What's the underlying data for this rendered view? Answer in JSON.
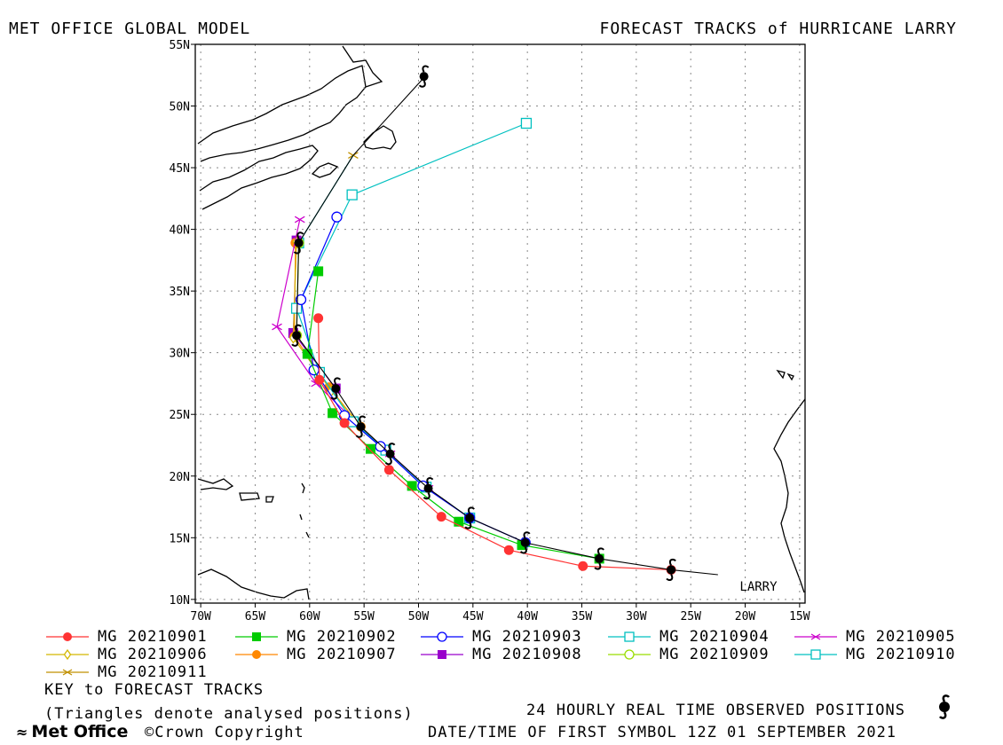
{
  "header": {
    "left_title": "MET OFFICE GLOBAL MODEL",
    "right_title": "FORECAST TRACKS of HURRICANE LARRY"
  },
  "chart_data": {
    "type": "scatter",
    "title": "FORECAST TRACKS of HURRICANE LARRY",
    "xlim": [
      -70.5,
      -14.5
    ],
    "ylim": [
      9.7,
      55
    ],
    "x_ticks": [
      -70,
      -65,
      -60,
      -55,
      -50,
      -45,
      -40,
      -35,
      -30,
      -25,
      -20,
      -15
    ],
    "x_tick_labels": [
      "70W",
      "65W",
      "60W",
      "55W",
      "50W",
      "45W",
      "40W",
      "35W",
      "30W",
      "25W",
      "20W",
      "15W"
    ],
    "y_ticks": [
      10,
      15,
      20,
      25,
      30,
      35,
      40,
      45,
      50,
      55
    ],
    "y_tick_labels": [
      "10N",
      "15N",
      "20N",
      "25N",
      "30N",
      "35N",
      "40N",
      "45N",
      "50N",
      "55N"
    ],
    "grid": true,
    "storm_label": "LARRY",
    "storm_label_pos": [
      -20.5,
      10.7
    ],
    "observed": {
      "name": "24 HOURLY REAL TIME OBSERVED POSITIONS",
      "line": [
        [
          -22.5,
          12.0
        ],
        [
          -26.8,
          12.4
        ],
        [
          -33.4,
          13.3
        ],
        [
          -40.2,
          14.6
        ],
        [
          -45.3,
          16.6
        ],
        [
          -49.1,
          19.0
        ],
        [
          -52.6,
          21.8
        ],
        [
          -55.3,
          24.0
        ],
        [
          -57.6,
          27.1
        ],
        [
          -61.2,
          31.4
        ],
        [
          -61.0,
          38.9
        ],
        [
          -56.0,
          46.0
        ],
        [
          -49.5,
          52.3
        ],
        [
          -49.5,
          52.4
        ]
      ],
      "symbols": [
        [
          -26.8,
          12.4
        ],
        [
          -33.4,
          13.3
        ],
        [
          -40.2,
          14.6
        ],
        [
          -45.3,
          16.6
        ],
        [
          -49.1,
          19.0
        ],
        [
          -52.6,
          21.8
        ],
        [
          -55.3,
          24.0
        ],
        [
          -57.6,
          27.1
        ],
        [
          -61.2,
          31.4
        ],
        [
          -61.0,
          38.9
        ],
        [
          -49.5,
          52.4
        ]
      ]
    },
    "series": [
      {
        "name": "MG 20210901",
        "color": "#ff3333",
        "marker": "circle-filled",
        "points": [
          [
            -26.8,
            12.4
          ],
          [
            -34.9,
            12.7
          ],
          [
            -41.7,
            14.0
          ],
          [
            -47.9,
            16.7
          ],
          [
            -52.7,
            20.5
          ],
          [
            -56.8,
            24.3
          ],
          [
            -59.1,
            27.8
          ],
          [
            -59.2,
            32.8
          ]
        ]
      },
      {
        "name": "MG 20210902",
        "color": "#00cc00",
        "marker": "square-filled",
        "points": [
          [
            -33.4,
            13.3
          ],
          [
            -40.5,
            14.4
          ],
          [
            -46.3,
            16.3
          ],
          [
            -50.6,
            19.2
          ],
          [
            -54.4,
            22.2
          ],
          [
            -57.9,
            25.1
          ],
          [
            -60.2,
            29.9
          ],
          [
            -59.2,
            36.6
          ]
        ]
      },
      {
        "name": "MG 20210903",
        "color": "#0000ff",
        "marker": "circle-open",
        "points": [
          [
            -40.2,
            14.6
          ],
          [
            -45.3,
            16.6
          ],
          [
            -49.6,
            19.2
          ],
          [
            -53.5,
            22.4
          ],
          [
            -56.8,
            24.9
          ],
          [
            -59.6,
            28.6
          ],
          [
            -60.8,
            34.3
          ],
          [
            -57.5,
            41.0
          ]
        ]
      },
      {
        "name": "MG 20210904",
        "color": "#00c0c0",
        "marker": "square-open",
        "points": [
          [
            -45.3,
            16.6
          ],
          [
            -49.3,
            19.1
          ],
          [
            -53.0,
            22.1
          ],
          [
            -56.0,
            24.4
          ],
          [
            -59.1,
            28.4
          ],
          [
            -61.2,
            33.6
          ],
          [
            -56.1,
            42.8
          ],
          [
            -40.1,
            48.6
          ]
        ]
      },
      {
        "name": "MG 20210905",
        "color": "#cc00cc",
        "marker": "x",
        "points": [
          [
            -49.1,
            19.0
          ],
          [
            -52.6,
            21.8
          ],
          [
            -55.8,
            24.4
          ],
          [
            -59.4,
            27.5
          ],
          [
            -63.0,
            32.1
          ],
          [
            -60.9,
            40.8
          ]
        ]
      },
      {
        "name": "MG 20210906",
        "color": "#d4b800",
        "marker": "diamond",
        "points": [
          [
            -52.6,
            21.8
          ],
          [
            -55.4,
            24.1
          ],
          [
            -58.0,
            26.9
          ],
          [
            -61.5,
            31.2
          ],
          [
            -61.2,
            39.0
          ]
        ]
      },
      {
        "name": "MG 20210907",
        "color": "#ff8800",
        "marker": "circle-filled",
        "points": [
          [
            -55.3,
            24.0
          ],
          [
            -58.2,
            27.2
          ],
          [
            -61.4,
            31.3
          ],
          [
            -61.3,
            38.9
          ]
        ]
      },
      {
        "name": "MG 20210908",
        "color": "#9900cc",
        "marker": "square-filled",
        "points": [
          [
            -57.6,
            27.1
          ],
          [
            -61.5,
            31.6
          ],
          [
            -61.2,
            39.1
          ]
        ]
      },
      {
        "name": "MG 20210909",
        "color": "#99dd00",
        "marker": "circle-open",
        "points": [
          [
            -61.2,
            31.4
          ],
          [
            -61.0,
            38.9
          ]
        ]
      },
      {
        "name": "MG 20210910",
        "color": "#00c0c0",
        "marker": "square-open",
        "points": [
          [
            -61.0,
            38.9
          ]
        ]
      },
      {
        "name": "MG 20210911",
        "color": "#c09000",
        "marker": "x",
        "points": [
          [
            -56.0,
            46.0
          ]
        ]
      }
    ]
  },
  "legend": {
    "items": [
      {
        "label": "MG 20210901"
      },
      {
        "label": "MG 20210902"
      },
      {
        "label": "MG 20210903"
      },
      {
        "label": "MG 20210904"
      },
      {
        "label": "MG 20210905"
      },
      {
        "label": "MG 20210906"
      },
      {
        "label": "MG 20210907"
      },
      {
        "label": "MG 20210908"
      },
      {
        "label": "MG 20210909"
      },
      {
        "label": "MG 20210910"
      },
      {
        "label": "MG 20210911"
      }
    ]
  },
  "footer": {
    "key": "KEY to FORECAST TRACKS",
    "triangles": "(Triangles denote analysed positions)",
    "observed": "24 HOURLY REAL TIME OBSERVED POSITIONS",
    "datetime": "DATE/TIME OF FIRST SYMBOL 12Z 01 SEPTEMBER 2021",
    "logo": "Met Office",
    "copyright": "©Crown Copyright"
  }
}
